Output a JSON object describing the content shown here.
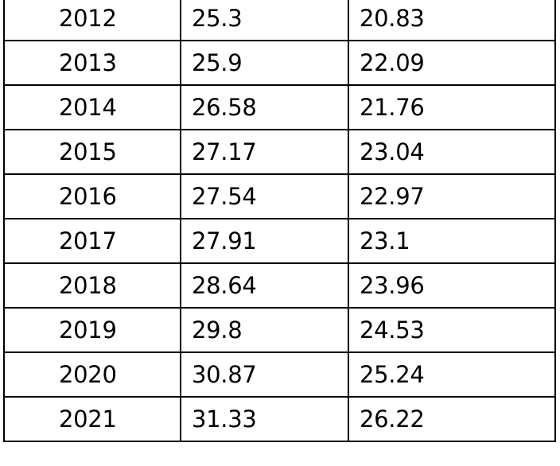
{
  "table": {
    "rows": [
      {
        "year": "2012",
        "col2": "25.3",
        "col3": "20.83"
      },
      {
        "year": "2013",
        "col2": "25.9",
        "col3": "22.09"
      },
      {
        "year": "2014",
        "col2": "26.58",
        "col3": "21.76"
      },
      {
        "year": "2015",
        "col2": "27.17",
        "col3": "23.04"
      },
      {
        "year": "2016",
        "col2": "27.54",
        "col3": "22.97"
      },
      {
        "year": "2017",
        "col2": "27.91",
        "col3": "23.1"
      },
      {
        "year": "2018",
        "col2": "28.64",
        "col3": "23.96"
      },
      {
        "year": "2019",
        "col2": "29.8",
        "col3": "24.53"
      },
      {
        "year": "2020",
        "col2": "30.87",
        "col3": "25.24"
      },
      {
        "year": "2021",
        "col2": "31.33",
        "col3": "26.22"
      }
    ]
  }
}
